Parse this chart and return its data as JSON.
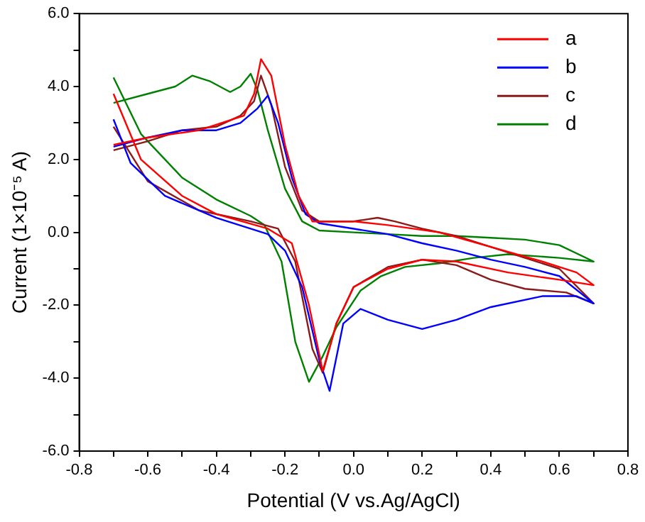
{
  "chart_data": {
    "type": "line",
    "xlabel": "Potential (V vs.Ag/AgCl)",
    "ylabel": "Current (1×10⁻⁵ A)",
    "xlim": [
      -0.8,
      0.8
    ],
    "ylim": [
      -6,
      6
    ],
    "xticks": [
      {
        "value": -0.8,
        "label": "-0.8"
      },
      {
        "value": -0.7,
        "label": null
      },
      {
        "value": -0.6,
        "label": "-0.6"
      },
      {
        "value": -0.5,
        "label": null
      },
      {
        "value": -0.4,
        "label": "-0.4"
      },
      {
        "value": -0.3,
        "label": null
      },
      {
        "value": -0.2,
        "label": "-0.2"
      },
      {
        "value": -0.1,
        "label": null
      },
      {
        "value": 0,
        "label": "0.0"
      },
      {
        "value": 0.1,
        "label": null
      },
      {
        "value": 0.2,
        "label": "0.2"
      },
      {
        "value": 0.3,
        "label": null
      },
      {
        "value": 0.4,
        "label": "0.4"
      },
      {
        "value": 0.5,
        "label": null
      },
      {
        "value": 0.6,
        "label": "0.6"
      },
      {
        "value": 0.7,
        "label": null
      },
      {
        "value": 0.8,
        "label": "0.8"
      }
    ],
    "yticks": [
      {
        "value": -6,
        "label": "-6.0"
      },
      {
        "value": -5,
        "label": null
      },
      {
        "value": -4,
        "label": "-4.0"
      },
      {
        "value": -3,
        "label": null
      },
      {
        "value": -2,
        "label": "-2.0"
      },
      {
        "value": -1,
        "label": null
      },
      {
        "value": 0,
        "label": "0.0"
      },
      {
        "value": 1,
        "label": null
      },
      {
        "value": 2,
        "label": "2.0"
      },
      {
        "value": 3,
        "label": null
      },
      {
        "value": 4,
        "label": "4.0"
      },
      {
        "value": 5,
        "label": null
      },
      {
        "value": 6,
        "label": "6.0"
      }
    ],
    "legend": "top right",
    "marker": "none",
    "grid": false,
    "series": [
      {
        "name": "a",
        "color": "#ff0000",
        "x": [
          -0.7,
          -0.6,
          -0.45,
          -0.32,
          -0.29,
          -0.27,
          -0.24,
          -0.2,
          -0.16,
          -0.12,
          0,
          0.1,
          0.25,
          0.4,
          0.55,
          0.65,
          0.7,
          0.6,
          0.45,
          0.3,
          0.2,
          0.1,
          0,
          -0.05,
          -0.09,
          -0.13,
          -0.18,
          -0.25,
          -0.4,
          -0.5,
          -0.62,
          -0.7
        ],
        "values": [
          2.4,
          2.6,
          2.8,
          3.2,
          3.8,
          4.75,
          4.3,
          2.4,
          1.0,
          0.3,
          0.3,
          0.2,
          0.0,
          -0.4,
          -0.8,
          -1.1,
          -1.45,
          -1.3,
          -1.1,
          -0.8,
          -0.75,
          -1.0,
          -1.5,
          -2.5,
          -3.8,
          -2.0,
          -0.3,
          0.1,
          0.5,
          1.0,
          2.0,
          3.8
        ]
      },
      {
        "name": "b",
        "color": "#0000ff",
        "x": [
          -0.7,
          -0.6,
          -0.5,
          -0.4,
          -0.33,
          -0.28,
          -0.25,
          -0.22,
          -0.18,
          -0.14,
          -0.1,
          0,
          0.1,
          0.2,
          0.3,
          0.4,
          0.5,
          0.6,
          0.7,
          0.65,
          0.55,
          0.4,
          0.3,
          0.2,
          0.1,
          0.02,
          -0.03,
          -0.07,
          -0.1,
          -0.15,
          -0.2,
          -0.25,
          -0.4,
          -0.55,
          -0.65,
          -0.7
        ],
        "values": [
          2.35,
          2.6,
          2.8,
          2.8,
          3.0,
          3.4,
          3.75,
          3.0,
          1.5,
          0.5,
          0.25,
          0.1,
          -0.05,
          -0.3,
          -0.5,
          -0.75,
          -0.95,
          -1.2,
          -1.95,
          -1.75,
          -1.75,
          -2.05,
          -2.4,
          -2.65,
          -2.4,
          -2.1,
          -2.5,
          -4.35,
          -3.5,
          -1.5,
          -0.5,
          -0.05,
          0.4,
          1.0,
          1.9,
          3.1
        ]
      },
      {
        "name": "c",
        "color": "#8b1a1a",
        "x": [
          -0.7,
          -0.6,
          -0.5,
          -0.4,
          -0.33,
          -0.29,
          -0.27,
          -0.24,
          -0.2,
          -0.15,
          -0.1,
          0,
          0.07,
          0.12,
          0.2,
          0.3,
          0.4,
          0.5,
          0.6,
          0.7,
          0.62,
          0.5,
          0.4,
          0.3,
          0.2,
          0.1,
          0,
          -0.05,
          -0.09,
          -0.12,
          -0.17,
          -0.22,
          -0.3,
          -0.45,
          -0.6,
          -0.7
        ],
        "values": [
          2.25,
          2.5,
          2.8,
          2.9,
          3.2,
          3.6,
          4.3,
          3.5,
          1.8,
          0.6,
          0.3,
          0.3,
          0.4,
          0.3,
          0.1,
          -0.1,
          -0.4,
          -0.7,
          -1.0,
          -1.95,
          -1.65,
          -1.55,
          -1.3,
          -0.9,
          -0.75,
          -0.95,
          -1.5,
          -2.5,
          -3.85,
          -3.2,
          -0.8,
          0.1,
          0.3,
          0.6,
          1.4,
          2.9
        ]
      },
      {
        "name": "d",
        "color": "#008000",
        "x": [
          -0.7,
          -0.6,
          -0.52,
          -0.47,
          -0.42,
          -0.36,
          -0.33,
          -0.3,
          -0.28,
          -0.25,
          -0.2,
          -0.15,
          -0.1,
          0,
          0.1,
          0.2,
          0.3,
          0.4,
          0.5,
          0.6,
          0.7,
          0.6,
          0.45,
          0.35,
          0.25,
          0.15,
          0.08,
          0.02,
          -0.05,
          -0.09,
          -0.13,
          -0.17,
          -0.21,
          -0.26,
          -0.3,
          -0.4,
          -0.5,
          -0.62,
          -0.7
        ],
        "values": [
          3.55,
          3.8,
          4.0,
          4.3,
          4.15,
          3.85,
          4.0,
          4.35,
          3.9,
          2.8,
          1.2,
          0.3,
          0.05,
          0.0,
          -0.05,
          -0.1,
          -0.1,
          -0.15,
          -0.2,
          -0.35,
          -0.8,
          -0.7,
          -0.6,
          -0.7,
          -0.85,
          -0.95,
          -1.2,
          -1.6,
          -2.6,
          -3.4,
          -4.1,
          -3.0,
          -0.8,
          0.2,
          0.45,
          0.9,
          1.5,
          2.7,
          4.25
        ]
      }
    ]
  }
}
